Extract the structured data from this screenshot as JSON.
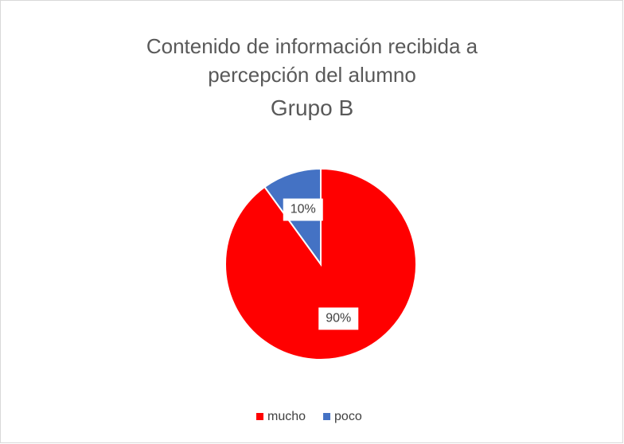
{
  "chart_data": {
    "type": "pie",
    "title": "Contenido de información recibida a percepción del alumno",
    "subtitle": "Grupo B",
    "categories": [
      "mucho",
      "poco"
    ],
    "values": [
      90,
      10
    ],
    "value_labels": [
      "90%",
      "10%"
    ],
    "colors": [
      "#ff0000",
      "#4472c4"
    ],
    "legend": "bottom"
  }
}
